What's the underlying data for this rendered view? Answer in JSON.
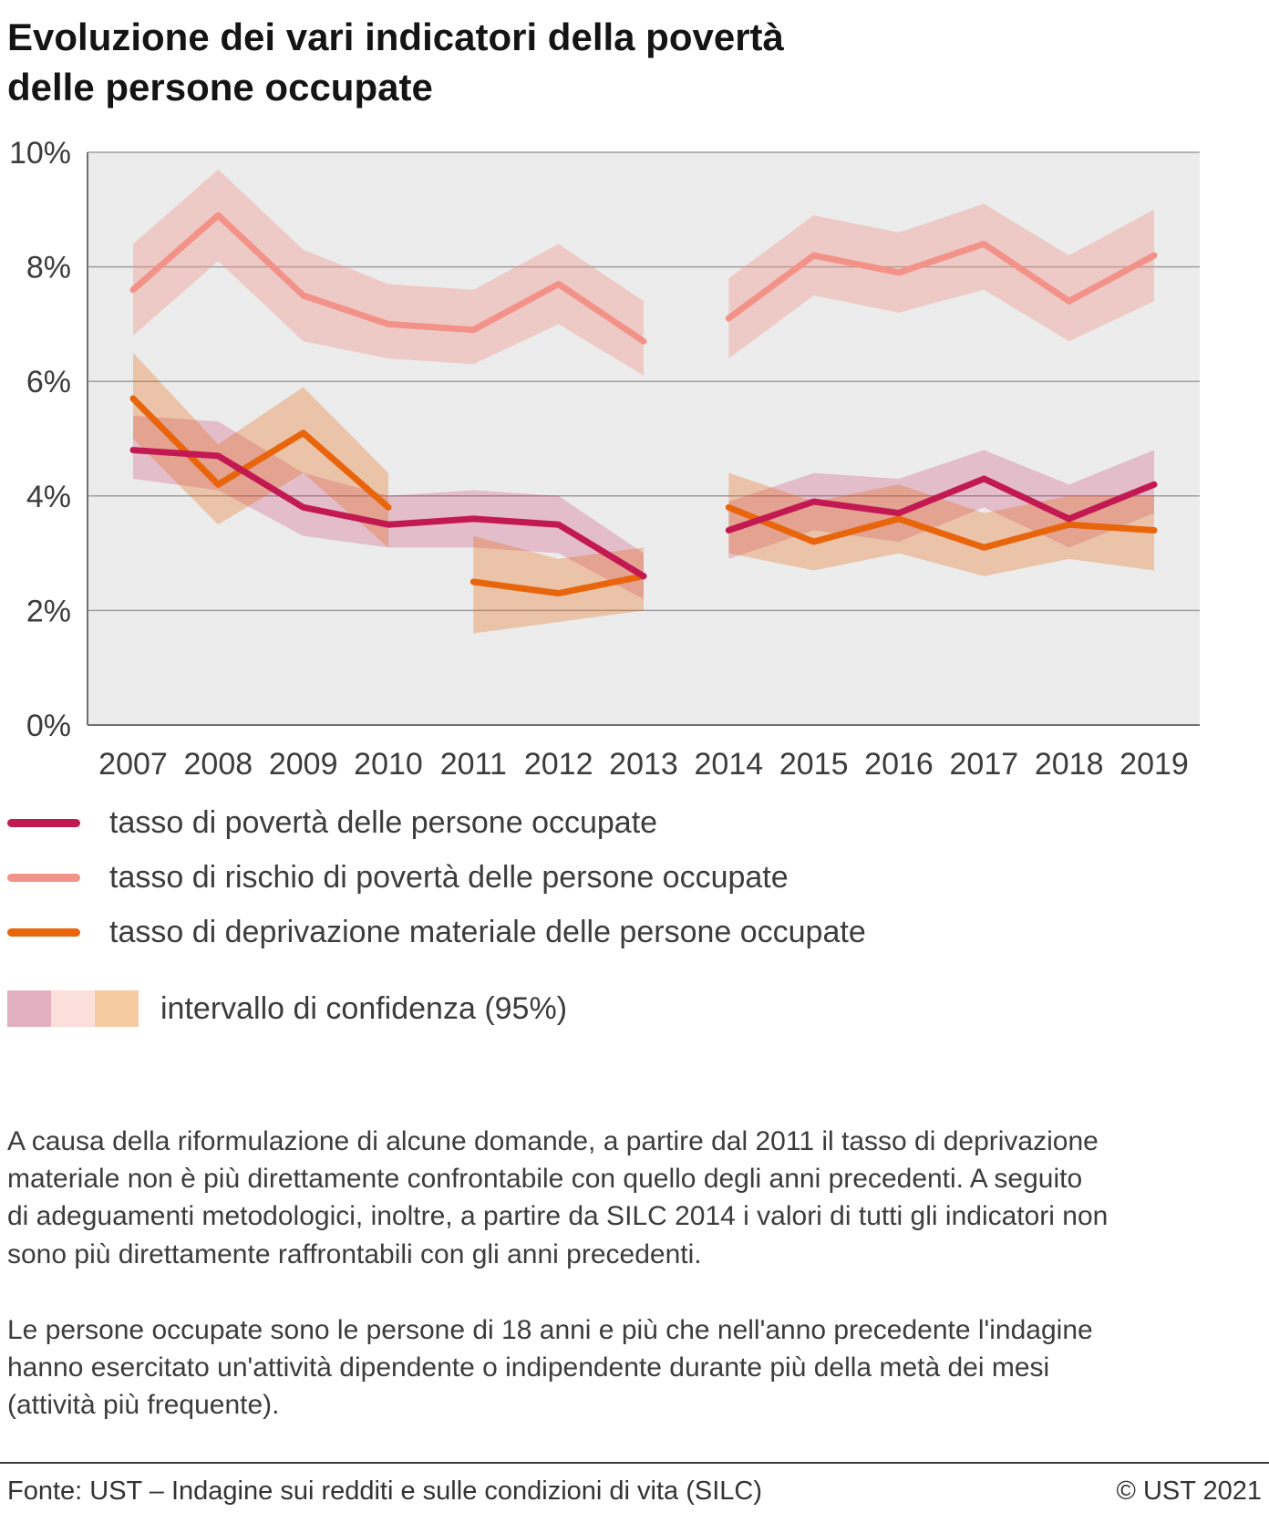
{
  "title": "Evoluzione dei vari indicatori della povertà\ndelle persone occupate",
  "chart_data": {
    "type": "line",
    "x": [
      2007,
      2008,
      2009,
      2010,
      2011,
      2012,
      2013,
      2014,
      2015,
      2016,
      2017,
      2018,
      2019
    ],
    "xlabel": "",
    "ylabel": "",
    "ylim": [
      0,
      10
    ],
    "yticks": [
      0,
      2,
      4,
      6,
      8,
      10
    ],
    "ytick_labels": [
      "0%",
      "2%",
      "4%",
      "6%",
      "8%",
      "10%"
    ],
    "grid": true,
    "plot_background": "#ececec",
    "grid_color": "#9e9e9e",
    "axis_color": "#6f6f6f",
    "legend_position": "bottom",
    "series": [
      {
        "name": "tasso di povertà delle persone occupate",
        "color": "#c31952",
        "band_opacity": 0.22,
        "segments": [
          {
            "x": [
              2007,
              2008,
              2009,
              2010,
              2011,
              2012,
              2013
            ],
            "y": [
              4.8,
              4.7,
              3.8,
              3.5,
              3.6,
              3.5,
              2.6
            ],
            "lo": [
              4.3,
              4.1,
              3.3,
              3.1,
              3.1,
              3.0,
              2.2
            ],
            "hi": [
              5.4,
              5.3,
              4.4,
              4.0,
              4.1,
              4.0,
              3.0
            ]
          },
          {
            "x": [
              2014,
              2015,
              2016,
              2017,
              2018,
              2019
            ],
            "y": [
              3.4,
              3.9,
              3.7,
              4.3,
              3.6,
              4.2
            ],
            "lo": [
              2.9,
              3.4,
              3.2,
              3.8,
              3.1,
              3.7
            ],
            "hi": [
              3.9,
              4.4,
              4.3,
              4.8,
              4.2,
              4.8
            ]
          }
        ]
      },
      {
        "name": "tasso di rischio di povertà delle persone occupate",
        "color": "#f29289",
        "band_opacity": 0.38,
        "segments": [
          {
            "x": [
              2007,
              2008,
              2009,
              2010,
              2011,
              2012,
              2013
            ],
            "y": [
              7.6,
              8.9,
              7.5,
              7.0,
              6.9,
              7.7,
              6.7
            ],
            "lo": [
              6.8,
              8.1,
              6.7,
              6.4,
              6.3,
              7.0,
              6.1
            ],
            "hi": [
              8.4,
              9.7,
              8.3,
              7.7,
              7.6,
              8.4,
              7.4
            ]
          },
          {
            "x": [
              2014,
              2015,
              2016,
              2017,
              2018,
              2019
            ],
            "y": [
              7.1,
              8.2,
              7.9,
              8.4,
              7.4,
              8.2
            ],
            "lo": [
              6.4,
              7.5,
              7.2,
              7.6,
              6.7,
              7.4
            ],
            "hi": [
              7.8,
              8.9,
              8.6,
              9.1,
              8.2,
              9.0
            ]
          }
        ]
      },
      {
        "name": "tasso di deprivazione materiale delle persone occupate",
        "color": "#e8650c",
        "band_opacity": 0.3,
        "segments": [
          {
            "x": [
              2007,
              2008,
              2009,
              2010
            ],
            "y": [
              5.7,
              4.2,
              5.1,
              3.8
            ],
            "lo": [
              5.0,
              3.5,
              4.4,
              3.1
            ],
            "hi": [
              6.5,
              4.9,
              5.9,
              4.4
            ]
          },
          {
            "x": [
              2011,
              2012,
              2013
            ],
            "y": [
              2.5,
              2.3,
              2.6
            ],
            "lo": [
              1.6,
              1.8,
              2.0
            ],
            "hi": [
              3.3,
              2.9,
              3.1
            ]
          },
          {
            "x": [
              2014,
              2015,
              2016,
              2017,
              2018,
              2019
            ],
            "y": [
              3.8,
              3.2,
              3.6,
              3.1,
              3.5,
              3.4
            ],
            "lo": [
              3.0,
              2.7,
              3.0,
              2.6,
              2.9,
              2.7
            ],
            "hi": [
              4.4,
              3.9,
              4.2,
              3.7,
              4.0,
              4.0
            ]
          }
        ]
      }
    ]
  },
  "legend": {
    "ci_label": "intervallo di confidenza (95%)",
    "ci_swatches": [
      "#e3b0c1",
      "#fadfdb",
      "#f6cba1"
    ]
  },
  "notes": [
    "A causa della riformulazione di alcune domande, a partire dal 2011 il tasso di deprivazione\nmateriale non è più direttamente confrontabile con quello degli anni precedenti. A seguito\ndi adeguamenti metodologici, inoltre, a partire da SILC 2014 i valori di tutti gli indicatori non\nsono più direttamente raffrontabili con gli anni precedenti.",
    "Le persone occupate sono le persone di 18 anni e più che nell'anno precedente l'indagine\nhanno esercitato un'attività dipendente o indipendente durante più della metà dei mesi\n(attività più frequente)."
  ],
  "footer": {
    "source": "Fonte: UST – Indagine sui redditi e sulle condizioni di vita (SILC)",
    "copyright": "© UST 2021"
  }
}
